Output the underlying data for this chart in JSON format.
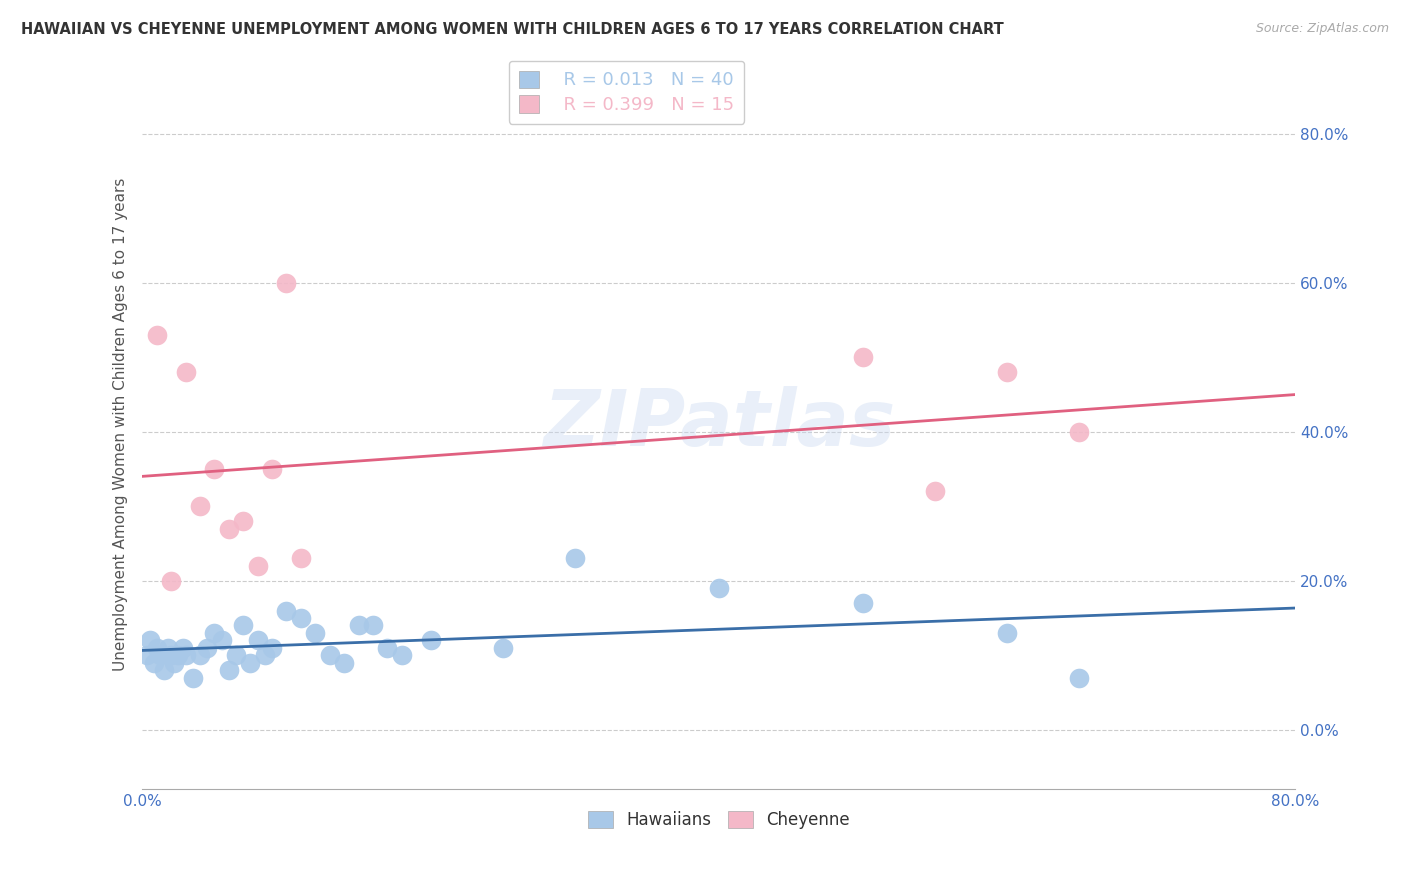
{
  "title": "HAWAIIAN VS CHEYENNE UNEMPLOYMENT AMONG WOMEN WITH CHILDREN AGES 6 TO 17 YEARS CORRELATION CHART",
  "source": "Source: ZipAtlas.com",
  "ylabel": "Unemployment Among Women with Children Ages 6 to 17 years",
  "ytick_vals": [
    0,
    20,
    40,
    60,
    80
  ],
  "xlim": [
    0,
    80
  ],
  "ylim": [
    -8,
    90
  ],
  "hawaiian_color": "#a8c8e8",
  "cheyenne_color": "#f4b8c8",
  "hawaiian_line_color": "#3a6ea8",
  "cheyenne_line_color": "#e06080",
  "watermark": "ZIPatlas",
  "hawaiian_x": [
    0.3,
    0.5,
    0.8,
    1.0,
    1.2,
    1.5,
    1.8,
    2.0,
    2.2,
    2.5,
    2.8,
    3.0,
    3.5,
    4.0,
    4.5,
    5.0,
    5.5,
    6.0,
    6.5,
    7.0,
    7.5,
    8.0,
    8.5,
    9.0,
    10.0,
    11.0,
    12.0,
    13.0,
    14.0,
    15.0,
    16.0,
    17.0,
    18.0,
    20.0,
    25.0,
    30.0,
    40.0,
    50.0,
    60.0,
    65.0
  ],
  "hawaiian_y": [
    10,
    12,
    9,
    11,
    10,
    8,
    11,
    10,
    9,
    10,
    11,
    10,
    7,
    10,
    11,
    13,
    12,
    8,
    10,
    14,
    9,
    12,
    10,
    11,
    16,
    15,
    13,
    10,
    9,
    14,
    14,
    11,
    10,
    12,
    11,
    23,
    19,
    17,
    13,
    7
  ],
  "cheyenne_x": [
    1.0,
    2.0,
    3.0,
    4.0,
    5.0,
    6.0,
    7.0,
    8.0,
    9.0,
    10.0,
    11.0,
    50.0,
    55.0,
    60.0,
    65.0
  ],
  "cheyenne_y": [
    53,
    20,
    48,
    30,
    35,
    27,
    28,
    22,
    35,
    60,
    23,
    50,
    32,
    48,
    40
  ],
  "legend_r_hawaiian": "R = 0.013",
  "legend_n_hawaiian": "N = 40",
  "legend_r_cheyenne": "R = 0.399",
  "legend_n_cheyenne": "N = 15",
  "legend_label_hawaiian": "Hawaiians",
  "legend_label_cheyenne": "Cheyenne"
}
